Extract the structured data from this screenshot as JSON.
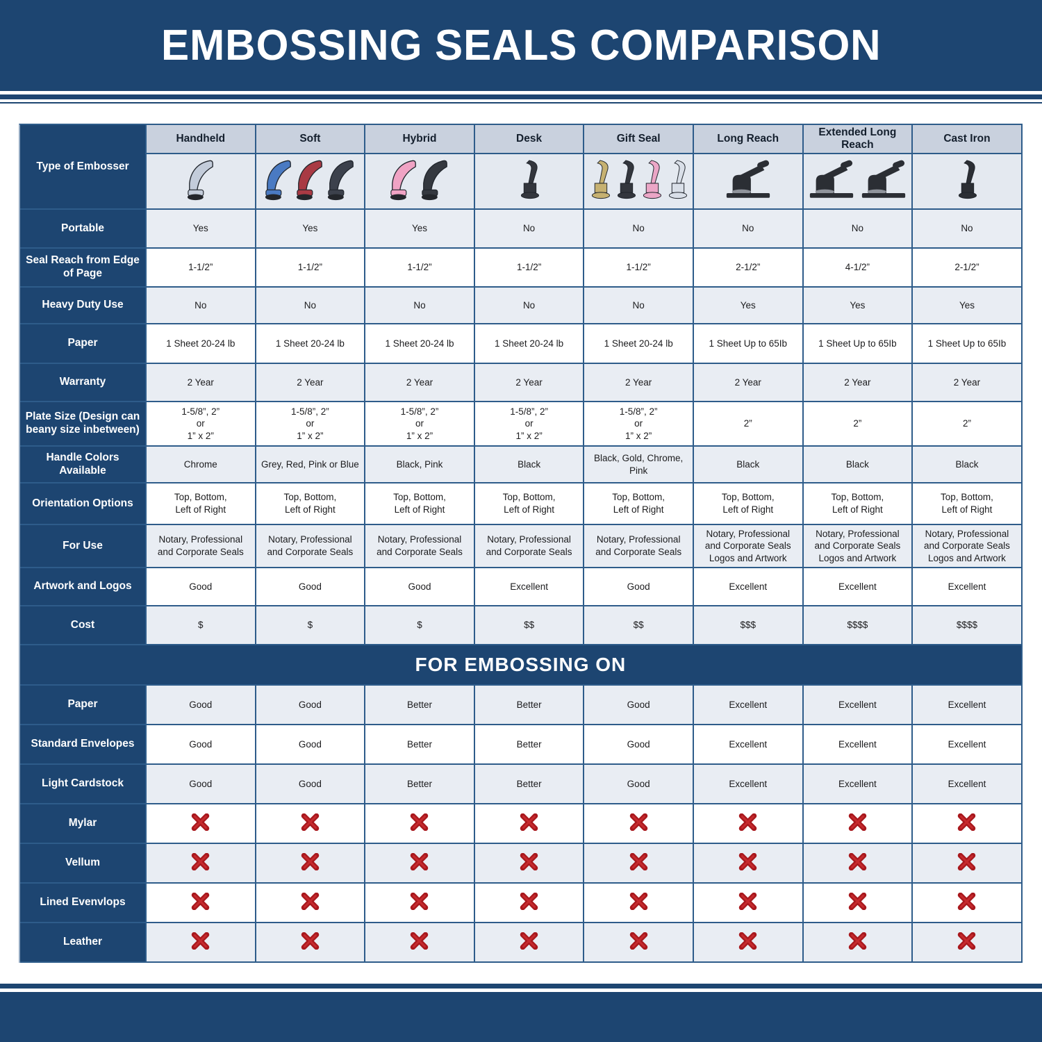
{
  "title": "EMBOSSING SEALS COMPARISON",
  "colors": {
    "navy": "#1d4571",
    "grid_blue": "#2e5c8a",
    "column_header_bg": "#c9d1de",
    "image_row_bg": "#e4e9f0",
    "stripe_gray": "#e9edf3",
    "x_red_dark": "#a8181d",
    "x_red_light": "#c62a2e"
  },
  "table": {
    "corner_label": "Type of Embosser",
    "columns": [
      {
        "name": "Handheld",
        "images": [
          {
            "icon": "hand-embosser-icon",
            "type": "hand",
            "color": "#c3ccda"
          }
        ]
      },
      {
        "name": "Soft",
        "images": [
          {
            "icon": "hand-embosser-icon",
            "type": "hand",
            "color": "#4a7ac2"
          },
          {
            "icon": "hand-embosser-icon",
            "type": "hand",
            "color": "#a93a44"
          },
          {
            "icon": "hand-embosser-icon",
            "type": "hand",
            "color": "#3c414c"
          }
        ]
      },
      {
        "name": "Hybrid",
        "images": [
          {
            "icon": "hand-embosser-icon",
            "type": "hand",
            "color": "#f0a3c4"
          },
          {
            "icon": "hand-embosser-icon",
            "type": "hand",
            "color": "#34383f"
          }
        ]
      },
      {
        "name": "Desk",
        "images": [
          {
            "icon": "desk-embosser-icon",
            "type": "cast",
            "color": "#33363d"
          }
        ]
      },
      {
        "name": "Gift Seal",
        "images": [
          {
            "icon": "gift-embosser-icon",
            "type": "cast",
            "color": "#c6b171"
          },
          {
            "icon": "gift-embosser-icon",
            "type": "cast",
            "color": "#33363d"
          },
          {
            "icon": "gift-embosser-icon",
            "type": "cast",
            "color": "#eba6c6"
          },
          {
            "icon": "gift-embosser-icon",
            "type": "cast",
            "color": "#d9dfe8"
          }
        ]
      },
      {
        "name": "Long Reach",
        "images": [
          {
            "icon": "long-reach-embosser-icon",
            "type": "press",
            "color": "#2b2e34"
          }
        ]
      },
      {
        "name": "Extended Long Reach",
        "images": [
          {
            "icon": "long-reach-embosser-icon",
            "type": "press",
            "color": "#2b2e34"
          },
          {
            "icon": "long-reach-embosser-icon",
            "type": "press",
            "color": "#2b2e34"
          }
        ]
      },
      {
        "name": "Cast Iron",
        "images": [
          {
            "icon": "cast-iron-embosser-icon",
            "type": "cast",
            "color": "#2b2e34"
          }
        ]
      }
    ],
    "spec_rows": [
      {
        "label": "Portable",
        "values": [
          "Yes",
          "Yes",
          "Yes",
          "No",
          "No",
          "No",
          "No",
          "No"
        ]
      },
      {
        "label": "Seal Reach from Edge of Page",
        "values": [
          "1-1/2”",
          "1-1/2”",
          "1-1/2”",
          "1-1/2”",
          "1-1/2”",
          "2-1/2”",
          "4-1/2”",
          "2-1/2”"
        ]
      },
      {
        "label": "Heavy Duty Use",
        "values": [
          "No",
          "No",
          "No",
          "No",
          "No",
          "Yes",
          "Yes",
          "Yes"
        ]
      },
      {
        "label": "Paper",
        "values": [
          "1 Sheet 20-24 lb",
          "1 Sheet 20-24 lb",
          "1 Sheet 20-24 lb",
          "1 Sheet 20-24 lb",
          "1 Sheet 20-24 lb",
          "1 Sheet Up to 65Ib",
          "1 Sheet Up to 65Ib",
          "1 Sheet Up to 65Ib"
        ]
      },
      {
        "label": "Warranty",
        "values": [
          "2 Year",
          "2 Year",
          "2 Year",
          "2 Year",
          "2 Year",
          "2 Year",
          "2 Year",
          "2 Year"
        ]
      },
      {
        "label": "Plate Size (Design can beany size inbetween)",
        "values": [
          "1-5/8”, 2”\nor\n1” x 2”",
          "1-5/8”, 2”\nor\n1” x 2”",
          "1-5/8”, 2”\nor\n1” x 2”",
          "1-5/8”, 2”\nor\n1” x 2”",
          "1-5/8”, 2”\nor\n1” x 2”",
          "2”",
          "2”",
          "2”"
        ]
      },
      {
        "label": "Handle Colors Available",
        "values": [
          "Chrome",
          "Grey, Red, Pink or Blue",
          "Black, Pink",
          "Black",
          "Black, Gold, Chrome, Pink",
          "Black",
          "Black",
          "Black"
        ]
      },
      {
        "label": "Orientation Options",
        "values": [
          "Top, Bottom,\nLeft of Right",
          "Top, Bottom,\nLeft of Right",
          "Top, Bottom,\nLeft of Right",
          "Top, Bottom,\nLeft of Right",
          "Top, Bottom,\nLeft of Right",
          "Top, Bottom,\nLeft of Right",
          "Top, Bottom,\nLeft of Right",
          "Top, Bottom,\nLeft of Right"
        ]
      },
      {
        "label": "For Use",
        "values": [
          "Notary, Professional\nand Corporate Seals",
          "Notary, Professional\nand Corporate Seals",
          "Notary, Professional\nand Corporate Seals",
          "Notary, Professional\nand Corporate Seals",
          "Notary, Professional\nand Corporate Seals",
          "Notary, Professional\nand Corporate Seals\nLogos and Artwork",
          "Notary, Professional\nand Corporate Seals\nLogos and Artwork",
          "Notary, Professional\nand Corporate Seals\nLogos and Artwork"
        ]
      },
      {
        "label": "Artwork and Logos",
        "values": [
          "Good",
          "Good",
          "Good",
          "Excellent",
          "Good",
          "Excellent",
          "Excellent",
          "Excellent"
        ]
      },
      {
        "label": "Cost",
        "values": [
          "$",
          "$",
          "$",
          "$$",
          "$$",
          "$$$",
          "$$$$",
          "$$$$"
        ]
      }
    ],
    "section_header": "FOR EMBOSSING ON",
    "embossing_rows": [
      {
        "label": "Paper",
        "values": [
          "Good",
          "Good",
          "Better",
          "Better",
          "Good",
          "Excellent",
          "Excellent",
          "Excellent"
        ]
      },
      {
        "label": "Standard Envelopes",
        "values": [
          "Good",
          "Good",
          "Better",
          "Better",
          "Good",
          "Excellent",
          "Excellent",
          "Excellent"
        ]
      },
      {
        "label": "Light Cardstock",
        "values": [
          "Good",
          "Good",
          "Better",
          "Better",
          "Good",
          "Excellent",
          "Excellent",
          "Excellent"
        ]
      },
      {
        "label": "Mylar",
        "values": [
          "x-icon",
          "x-icon",
          "x-icon",
          "x-icon",
          "x-icon",
          "x-icon",
          "x-icon",
          "x-icon"
        ]
      },
      {
        "label": "Vellum",
        "values": [
          "x-icon",
          "x-icon",
          "x-icon",
          "x-icon",
          "x-icon",
          "x-icon",
          "x-icon",
          "x-icon"
        ]
      },
      {
        "label": "Lined Evenvlops",
        "values": [
          "x-icon",
          "x-icon",
          "x-icon",
          "x-icon",
          "x-icon",
          "x-icon",
          "x-icon",
          "x-icon"
        ]
      },
      {
        "label": "Leather",
        "values": [
          "x-icon",
          "x-icon",
          "x-icon",
          "x-icon",
          "x-icon",
          "x-icon",
          "x-icon",
          "x-icon"
        ]
      }
    ]
  }
}
